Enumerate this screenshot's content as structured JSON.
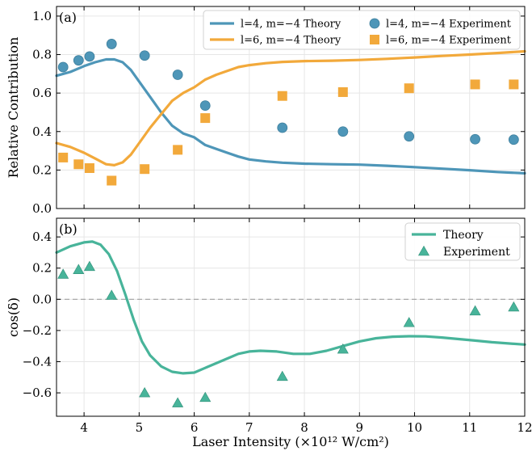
{
  "colors": {
    "blue": "#4e96b8",
    "orange": "#f2a93b",
    "teal": "#48b49a",
    "grid": "#e6e6e6",
    "dashed": "#a0a0a0"
  },
  "xlabel": "Laser Intensity (×10¹² W/cm²)",
  "chart_data": [
    {
      "type": "line",
      "panel_label": "(a)",
      "ylabel": "Relative Contribution",
      "xlim": [
        3.5,
        12
      ],
      "ylim": [
        0,
        1.05
      ],
      "x_ticks": [
        4,
        5,
        6,
        7,
        8,
        9,
        10,
        11,
        12
      ],
      "y_ticks": [
        0.0,
        0.2,
        0.4,
        0.6,
        0.8,
        1.0
      ],
      "y_tick_labels": [
        "0.0",
        "0.2",
        "0.4",
        "0.6",
        "0.8",
        "1.0"
      ],
      "grid": true,
      "legend_position": "top-right",
      "series": [
        {
          "name": "l=4, m=−4 Theory",
          "kind": "line",
          "color": "#4e96b8",
          "x": [
            3.5,
            3.75,
            4.0,
            4.2,
            4.4,
            4.55,
            4.7,
            4.85,
            5.0,
            5.2,
            5.4,
            5.6,
            5.8,
            6.0,
            6.2,
            6.4,
            6.6,
            6.8,
            7.0,
            7.3,
            7.6,
            8.0,
            8.5,
            9.0,
            9.5,
            10.0,
            10.5,
            11.0,
            11.5,
            12.0
          ],
          "y": [
            0.69,
            0.71,
            0.74,
            0.76,
            0.775,
            0.775,
            0.76,
            0.72,
            0.66,
            0.58,
            0.5,
            0.43,
            0.39,
            0.37,
            0.33,
            0.31,
            0.29,
            0.27,
            0.255,
            0.245,
            0.238,
            0.233,
            0.23,
            0.228,
            0.222,
            0.215,
            0.207,
            0.199,
            0.19,
            0.183
          ]
        },
        {
          "name": "l=6, m=−4 Theory",
          "kind": "line",
          "color": "#f2a93b",
          "x": [
            3.5,
            3.75,
            4.0,
            4.2,
            4.4,
            4.55,
            4.7,
            4.85,
            5.0,
            5.2,
            5.4,
            5.6,
            5.8,
            6.0,
            6.2,
            6.4,
            6.6,
            6.8,
            7.0,
            7.3,
            7.6,
            8.0,
            8.5,
            9.0,
            9.5,
            10.0,
            10.5,
            11.0,
            11.5,
            12.0
          ],
          "y": [
            0.34,
            0.32,
            0.29,
            0.26,
            0.23,
            0.225,
            0.24,
            0.28,
            0.34,
            0.42,
            0.49,
            0.56,
            0.6,
            0.63,
            0.67,
            0.695,
            0.715,
            0.735,
            0.745,
            0.755,
            0.762,
            0.766,
            0.768,
            0.772,
            0.778,
            0.785,
            0.793,
            0.8,
            0.808,
            0.817
          ]
        },
        {
          "name": "l=4, m=−4 Experiment",
          "kind": "scatter",
          "marker": "circle",
          "color": "#4e96b8",
          "x": [
            3.62,
            3.9,
            4.1,
            4.5,
            5.1,
            5.7,
            6.2,
            7.6,
            8.7,
            9.9,
            11.1,
            11.8
          ],
          "y": [
            0.735,
            0.77,
            0.79,
            0.855,
            0.795,
            0.695,
            0.535,
            0.42,
            0.4,
            0.375,
            0.36,
            0.358
          ]
        },
        {
          "name": "l=6, m=−4 Experiment",
          "kind": "scatter",
          "marker": "square",
          "color": "#f2a93b",
          "x": [
            3.62,
            3.9,
            4.1,
            4.5,
            5.1,
            5.7,
            6.2,
            7.6,
            8.7,
            9.9,
            11.1,
            11.8
          ],
          "y": [
            0.265,
            0.23,
            0.21,
            0.145,
            0.205,
            0.305,
            0.47,
            0.585,
            0.605,
            0.625,
            0.645,
            0.645
          ]
        }
      ]
    },
    {
      "type": "line",
      "panel_label": "(b)",
      "ylabel": "cos(δ)",
      "xlabel": "Laser Intensity (×10¹² W/cm²)",
      "xlim": [
        3.5,
        12
      ],
      "ylim": [
        -0.75,
        0.52
      ],
      "x_ticks": [
        4,
        5,
        6,
        7,
        8,
        9,
        10,
        11,
        12
      ],
      "y_ticks": [
        -0.6,
        -0.4,
        -0.2,
        0.0,
        0.2,
        0.4
      ],
      "y_tick_labels": [
        "−0.6",
        "−0.4",
        "−0.2",
        "0.0",
        "0.2",
        "0.4"
      ],
      "grid": true,
      "reference_line": 0,
      "legend_position": "top-right",
      "series": [
        {
          "name": "Theory",
          "kind": "line",
          "color": "#48b49a",
          "x": [
            3.5,
            3.75,
            4.0,
            4.15,
            4.3,
            4.45,
            4.6,
            4.75,
            4.9,
            5.05,
            5.2,
            5.4,
            5.6,
            5.8,
            6.0,
            6.2,
            6.4,
            6.6,
            6.8,
            7.0,
            7.2,
            7.5,
            7.8,
            8.1,
            8.4,
            8.7,
            9.0,
            9.3,
            9.6,
            9.9,
            10.2,
            10.5,
            10.8,
            11.1,
            11.4,
            11.7,
            12.0
          ],
          "y": [
            0.3,
            0.34,
            0.365,
            0.37,
            0.35,
            0.29,
            0.18,
            0.03,
            -0.13,
            -0.27,
            -0.36,
            -0.43,
            -0.465,
            -0.475,
            -0.47,
            -0.44,
            -0.41,
            -0.38,
            -0.35,
            -0.335,
            -0.33,
            -0.335,
            -0.35,
            -0.35,
            -0.33,
            -0.3,
            -0.27,
            -0.25,
            -0.24,
            -0.237,
            -0.238,
            -0.245,
            -0.255,
            -0.265,
            -0.275,
            -0.283,
            -0.29
          ]
        },
        {
          "name": "Experiment",
          "kind": "scatter",
          "marker": "triangle",
          "color": "#48b49a",
          "x": [
            3.62,
            3.9,
            4.1,
            4.5,
            5.1,
            5.7,
            6.2,
            7.6,
            8.7,
            9.9,
            11.1,
            11.8
          ],
          "y": [
            0.16,
            0.19,
            0.21,
            0.025,
            -0.6,
            -0.665,
            -0.63,
            -0.495,
            -0.32,
            -0.15,
            -0.075,
            -0.05
          ]
        }
      ]
    }
  ]
}
